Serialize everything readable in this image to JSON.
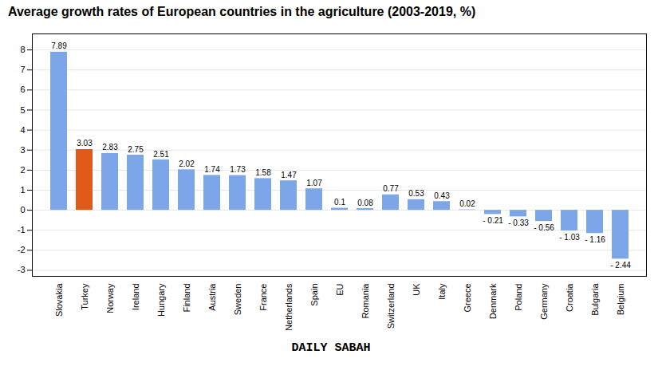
{
  "chart_data": {
    "type": "bar",
    "title": "Average growth rates of European countries in the agriculture (2003-2019, %)",
    "categories": [
      "Slovakia",
      "Turkey",
      "Norway",
      "Ireland",
      "Hungary",
      "Finland",
      "Austria",
      "Sweden",
      "France",
      "Netherlands",
      "Spain",
      "EU",
      "Romania",
      "Switzerland",
      "UK",
      "Italy",
      "Greece",
      "Denmark",
      "Poland",
      "Germany",
      "Croatia",
      "Bulgaria",
      "Belgium"
    ],
    "values": [
      7.89,
      3.03,
      2.83,
      2.75,
      2.51,
      2.02,
      1.74,
      1.73,
      1.58,
      1.47,
      1.07,
      0.1,
      0.08,
      0.77,
      0.53,
      0.43,
      0.02,
      -0.21,
      -0.33,
      -0.56,
      -1.03,
      -1.16,
      -2.44
    ],
    "value_labels": [
      "7.89",
      "3.03",
      "2.83",
      "2.75",
      "2.51",
      "2.02",
      "1.74",
      "1.73",
      "1.58",
      "1.47",
      "1.07",
      "0.1",
      "0.08",
      "0.77",
      "0.53",
      "0.43",
      "0.02",
      "- 0.21",
      "- 0.33",
      "- 0.56",
      "- 1.03",
      "- 1.16",
      "- 2.44"
    ],
    "colors": [
      "#7ca6e8",
      "#e05a1a",
      "#7ca6e8",
      "#7ca6e8",
      "#7ca6e8",
      "#7ca6e8",
      "#7ca6e8",
      "#7ca6e8",
      "#7ca6e8",
      "#7ca6e8",
      "#7ca6e8",
      "#7ca6e8",
      "#7ca6e8",
      "#7ca6e8",
      "#7ca6e8",
      "#7ca6e8",
      "#7ca6e8",
      "#7ca6e8",
      "#7ca6e8",
      "#7ca6e8",
      "#7ca6e8",
      "#7ca6e8",
      "#7ca6e8"
    ],
    "ylim": [
      -3.3,
      8.8
    ],
    "yticks": [
      -3,
      -2,
      -1,
      0,
      1,
      2,
      3,
      4,
      5,
      6,
      7,
      8
    ],
    "grid": true,
    "data_labels": true,
    "annotations": [
      "DAILY SABAH"
    ]
  }
}
